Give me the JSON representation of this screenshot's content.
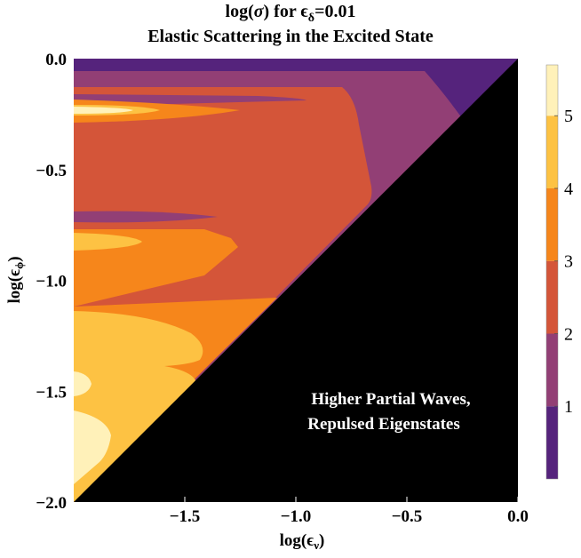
{
  "chart_data": {
    "type": "contour",
    "title_line1_prefix": "log(",
    "title_line1_sym": "σ",
    "title_line1_mid": ") for ϵ",
    "title_line1_sub": "δ",
    "title_line1_suffix": "=0.01",
    "title_line2": "Elastic Scattering in the Excited State",
    "xlabel_main": "log(ϵ",
    "xlabel_sub": "ν",
    "xlabel_close": ")",
    "ylabel_main": "log(ϵ",
    "ylabel_sub": "ϕ",
    "ylabel_close": ")",
    "xlim": [
      -2.0,
      0.0
    ],
    "ylim": [
      -2.0,
      0.0
    ],
    "x_ticks": [
      {
        "value": -1.5,
        "label": "−1.5"
      },
      {
        "value": -1.0,
        "label": "−1.0"
      },
      {
        "value": -0.5,
        "label": "−0.5"
      },
      {
        "value": 0.0,
        "label": "0.0"
      }
    ],
    "y_ticks": [
      {
        "value": 0.0,
        "label": "0.0"
      },
      {
        "value": -0.5,
        "label": "−0.5"
      },
      {
        "value": -1.0,
        "label": "−1.0"
      },
      {
        "value": -1.5,
        "label": "−1.5"
      },
      {
        "value": -2.0,
        "label": "−2.0"
      }
    ],
    "annotation_line1": "Higher Partial Waves,",
    "annotation_line2": "Repulsed Eigenstates",
    "excluded_region": "y < x (black)",
    "colorbar": {
      "range": [
        0,
        5.7
      ],
      "ticks": [
        {
          "value": 1,
          "label": "1"
        },
        {
          "value": 2,
          "label": "2"
        },
        {
          "value": 3,
          "label": "3"
        },
        {
          "value": 4,
          "label": "4"
        },
        {
          "value": 5,
          "label": "5"
        }
      ],
      "levels": [
        {
          "from": 0,
          "to": 1,
          "color": "#55237c"
        },
        {
          "from": 1,
          "to": 2,
          "color": "#923f75"
        },
        {
          "from": 2,
          "to": 3,
          "color": "#d45539"
        },
        {
          "from": 3,
          "to": 4,
          "color": "#f6861b"
        },
        {
          "from": 4,
          "to": 5,
          "color": "#fdc243"
        },
        {
          "from": 5,
          "to": 5.7,
          "color": "#fff1b9"
        }
      ]
    }
  }
}
